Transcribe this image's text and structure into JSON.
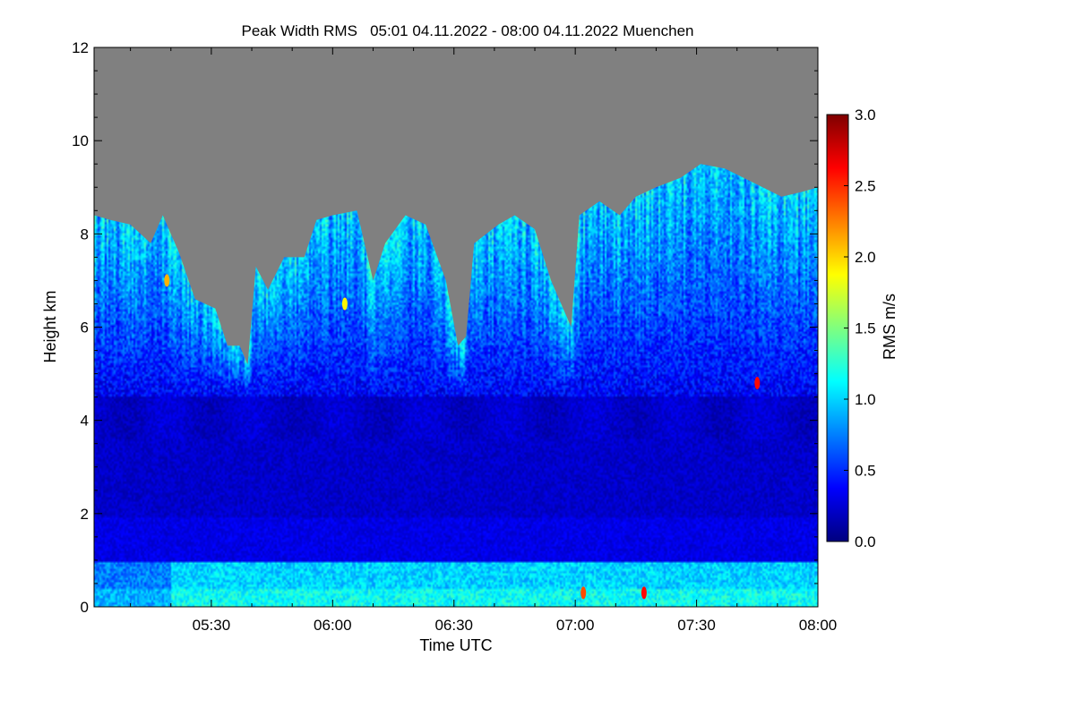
{
  "chart_data": {
    "type": "heatmap",
    "title": "Peak Width RMS   05:01 04.11.2022 - 08:00 04.11.2022 Muenchen",
    "xlabel": "Time UTC",
    "ylabel": "Height km",
    "colorbar_label": "RMS m/s",
    "xlim": [
      "05:01",
      "08:00"
    ],
    "ylim": [
      0,
      12
    ],
    "x_ticks": [
      "05:30",
      "06:00",
      "06:30",
      "07:00",
      "07:30",
      "08:00"
    ],
    "y_ticks": [
      "0",
      "2",
      "4",
      "6",
      "8",
      "10",
      "12"
    ],
    "colorbar_range": [
      0.0,
      3.0
    ],
    "colorbar_ticks": [
      "0.0",
      "0.5",
      "1.0",
      "1.5",
      "2.0",
      "2.5",
      "3.0"
    ],
    "colormap": [
      "#00007f",
      "#0000ff",
      "#007fff",
      "#00ffff",
      "#7fff7f",
      "#ffff00",
      "#ff7f00",
      "#ff0000",
      "#7f0000"
    ],
    "no_data_color": "#808080",
    "data_top_height_km": [
      [
        "05:01",
        8.4
      ],
      [
        "05:05",
        8.3
      ],
      [
        "05:10",
        8.2
      ],
      [
        "05:15",
        7.8
      ],
      [
        "05:18",
        8.4
      ],
      [
        "05:22",
        7.6
      ],
      [
        "05:26",
        6.6
      ],
      [
        "05:31",
        6.4
      ],
      [
        "05:34",
        5.6
      ],
      [
        "05:37",
        5.6
      ],
      [
        "05:39",
        5.2
      ],
      [
        "05:41",
        7.3
      ],
      [
        "05:44",
        6.8
      ],
      [
        "05:48",
        7.5
      ],
      [
        "05:53",
        7.5
      ],
      [
        "05:56",
        8.3
      ],
      [
        "06:00",
        8.4
      ],
      [
        "06:06",
        8.5
      ],
      [
        "06:10",
        7.0
      ],
      [
        "06:13",
        7.8
      ],
      [
        "06:18",
        8.4
      ],
      [
        "06:23",
        8.2
      ],
      [
        "06:28",
        7.0
      ],
      [
        "06:31",
        5.6
      ],
      [
        "06:33",
        5.8
      ],
      [
        "06:35",
        7.8
      ],
      [
        "06:41",
        8.2
      ],
      [
        "06:45",
        8.4
      ],
      [
        "06:50",
        8.1
      ],
      [
        "06:54",
        7.0
      ],
      [
        "06:59",
        6.0
      ],
      [
        "07:01",
        8.4
      ],
      [
        "07:06",
        8.7
      ],
      [
        "07:11",
        8.4
      ],
      [
        "07:15",
        8.8
      ],
      [
        "07:20",
        9.0
      ],
      [
        "07:26",
        9.2
      ],
      [
        "07:31",
        9.5
      ],
      [
        "07:37",
        9.4
      ],
      [
        "07:44",
        9.1
      ],
      [
        "07:51",
        8.8
      ],
      [
        "07:56",
        8.9
      ],
      [
        "08:00",
        9.0
      ]
    ],
    "features": {
      "surface_layer": {
        "bottom_km": 0.0,
        "top_km": 0.95,
        "rms_range": [
          0.8,
          1.3
        ]
      },
      "mid_layer": {
        "bottom_km": 1.0,
        "top_km": 4.5,
        "rms_range": [
          0.1,
          0.5
        ]
      },
      "upper_layer": {
        "bottom_km": 4.5,
        "top_km": "data_top",
        "rms_range": [
          0.3,
          1.6
        ]
      },
      "hot_spots": [
        {
          "time": "05:19",
          "height_km": 7.0,
          "rms": 2.1
        },
        {
          "time": "06:03",
          "height_km": 6.5,
          "rms": 1.9
        },
        {
          "time": "07:45",
          "height_km": 4.8,
          "rms": 2.6
        },
        {
          "time": "07:02",
          "height_km": 0.3,
          "rms": 2.4
        },
        {
          "time": "07:17",
          "height_km": 0.3,
          "rms": 2.6
        }
      ]
    },
    "grid": false,
    "legend": "right colorbar"
  }
}
